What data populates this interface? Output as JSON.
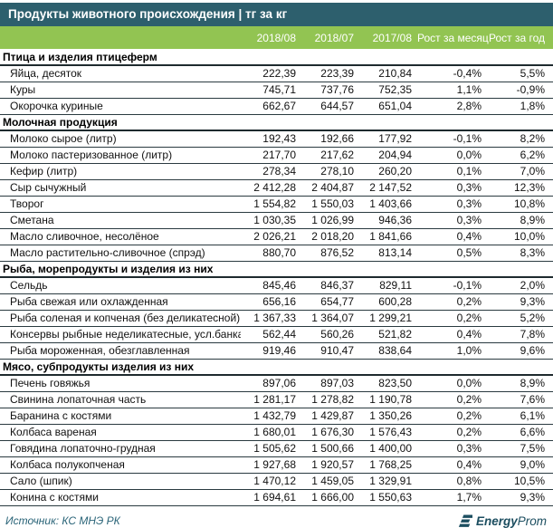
{
  "title": "Продукты животного происхождения | тг за кг",
  "columns": [
    "2018/08",
    "2018/07",
    "2017/08",
    "Рост за месяц",
    "Рост за год"
  ],
  "sections": [
    {
      "name": "Птица и изделия птицеферм",
      "rows": [
        {
          "name": "Яйца, десяток",
          "values": [
            "222,39",
            "223,39",
            "210,84",
            "-0,4%",
            "5,5%"
          ]
        },
        {
          "name": "Куры",
          "values": [
            "745,71",
            "737,76",
            "752,35",
            "1,1%",
            "-0,9%"
          ]
        },
        {
          "name": "Окорочка куриные",
          "values": [
            "662,67",
            "644,57",
            "651,04",
            "2,8%",
            "1,8%"
          ]
        }
      ]
    },
    {
      "name": "Молочная продукция",
      "rows": [
        {
          "name": "Молоко сырое (литр)",
          "values": [
            "192,43",
            "192,66",
            "177,92",
            "-0,1%",
            "8,2%"
          ]
        },
        {
          "name": "Молоко пастеризованное (литр)",
          "values": [
            "217,70",
            "217,62",
            "204,94",
            "0,0%",
            "6,2%"
          ]
        },
        {
          "name": "Кефир (литр)",
          "values": [
            "278,34",
            "278,10",
            "260,20",
            "0,1%",
            "7,0%"
          ]
        },
        {
          "name": "Сыр сычужный",
          "values": [
            "2 412,28",
            "2 404,87",
            "2 147,52",
            "0,3%",
            "12,3%"
          ]
        },
        {
          "name": "Творог",
          "values": [
            "1 554,82",
            "1 550,03",
            "1 403,66",
            "0,3%",
            "10,8%"
          ]
        },
        {
          "name": "Сметана",
          "values": [
            "1 030,35",
            "1 026,99",
            "946,36",
            "0,3%",
            "8,9%"
          ]
        },
        {
          "name": "Масло сливочное, несолёное",
          "values": [
            "2 026,21",
            "2 018,20",
            "1 841,66",
            "0,4%",
            "10,0%"
          ]
        },
        {
          "name": "Масло растительно-сливочное (спрэд)",
          "values": [
            "880,70",
            "876,52",
            "813,14",
            "0,5%",
            "8,3%"
          ]
        }
      ]
    },
    {
      "name": "Рыба, морепродукты и изделия из них",
      "rows": [
        {
          "name": "Сельдь",
          "values": [
            "845,46",
            "846,37",
            "829,11",
            "-0,1%",
            "2,0%"
          ]
        },
        {
          "name": "Рыба свежая или охлажденная",
          "values": [
            "656,16",
            "654,77",
            "600,28",
            "0,2%",
            "9,3%"
          ]
        },
        {
          "name": "Рыба соленая и копченая (без деликатесной)",
          "values": [
            "1 367,33",
            "1 364,07",
            "1 299,21",
            "0,2%",
            "5,2%"
          ]
        },
        {
          "name": "Консервы рыбные неделикатесные, усл.банка",
          "values": [
            "562,44",
            "560,26",
            "521,82",
            "0,4%",
            "7,8%"
          ]
        },
        {
          "name": "Рыба мороженная, обезглавленная",
          "values": [
            "919,46",
            "910,47",
            "838,64",
            "1,0%",
            "9,6%"
          ]
        }
      ]
    },
    {
      "name": "Мясо, субпродукты изделия из них",
      "rows": [
        {
          "name": "Печень говяжья",
          "values": [
            "897,06",
            "897,03",
            "823,50",
            "0,0%",
            "8,9%"
          ]
        },
        {
          "name": "Свинина лопаточная часть",
          "values": [
            "1 281,17",
            "1 278,82",
            "1 190,78",
            "0,2%",
            "7,6%"
          ]
        },
        {
          "name": "Баранина с костями",
          "values": [
            "1 432,79",
            "1 429,87",
            "1 350,26",
            "0,2%",
            "6,1%"
          ]
        },
        {
          "name": "Колбаса вареная",
          "values": [
            "1 680,01",
            "1 676,30",
            "1 576,43",
            "0,2%",
            "6,6%"
          ]
        },
        {
          "name": "Говядина лопаточно-грудная",
          "values": [
            "1 505,62",
            "1 500,66",
            "1 400,00",
            "0,3%",
            "7,5%"
          ]
        },
        {
          "name": "Колбаса полукопченая",
          "values": [
            "1 927,68",
            "1 920,57",
            "1 768,25",
            "0,4%",
            "9,0%"
          ]
        },
        {
          "name": "Сало (шпик)",
          "values": [
            "1 470,12",
            "1 459,05",
            "1 329,91",
            "0,8%",
            "10,5%"
          ]
        },
        {
          "name": "Конина с костями",
          "values": [
            "1 694,61",
            "1 666,00",
            "1 550,63",
            "1,7%",
            "9,3%"
          ]
        }
      ]
    }
  ],
  "footer": {
    "source": "Источник: КС МНЭ РК",
    "logo_bold": "Energy",
    "logo_light": "Prom"
  },
  "colors": {
    "header_bg": "#2D5F6D",
    "accent_green": "#92C452",
    "row_line": "#2A3A40",
    "source_text": "#2A6478",
    "logo": "#1C4E60",
    "bottom_rule": "#2D6577"
  }
}
